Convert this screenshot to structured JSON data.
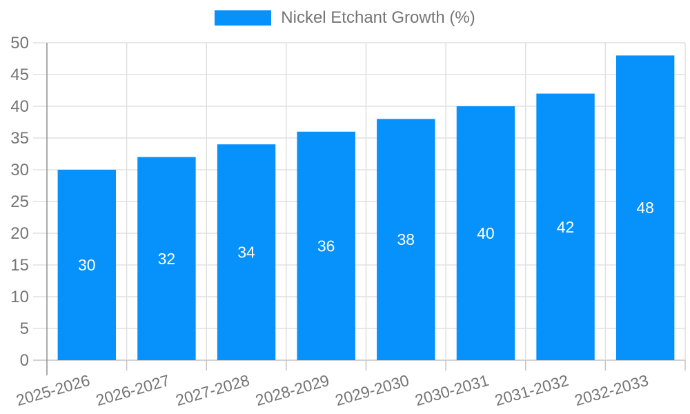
{
  "chart_data": {
    "type": "bar",
    "title": "",
    "legend": {
      "label": "Nickel Etchant Growth (%)",
      "position": "top-center"
    },
    "categories": [
      "2025-2026",
      "2026-2027",
      "2027-2028",
      "2028-2029",
      "2029-2030",
      "2030-2031",
      "2031-2032",
      "2032-2033"
    ],
    "series": [
      {
        "name": "Nickel Etchant Growth (%)",
        "values": [
          30,
          32,
          34,
          36,
          38,
          40,
          42,
          48
        ]
      }
    ],
    "value_labels_visible": true,
    "xlabel": "",
    "ylabel": "",
    "ylim": [
      0,
      50
    ],
    "ytick_step": 5,
    "yticks": [
      0,
      5,
      10,
      15,
      20,
      25,
      30,
      35,
      40,
      45,
      50
    ],
    "grid": true,
    "x_label_rotation_deg": -16,
    "colors": {
      "bar": "#0691fb",
      "value_label": "#ffffff",
      "axis_label": "#757575",
      "legend_label": "#757575",
      "gridline": "#e0e0e0",
      "baseline": "#c4c4c4",
      "y_axis_line": "#8f8f8f",
      "background": "#ffffff"
    }
  }
}
